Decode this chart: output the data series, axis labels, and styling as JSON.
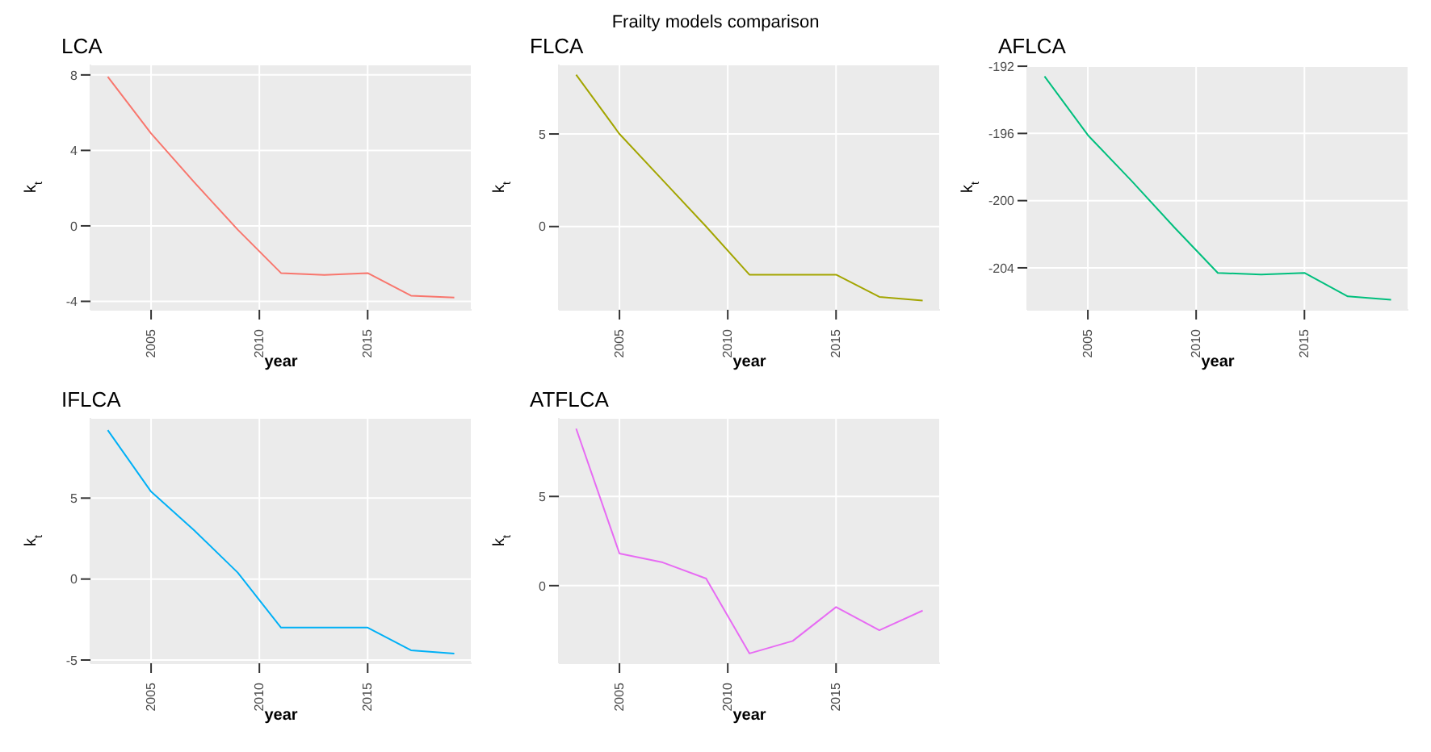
{
  "chart_data": [
    {
      "type": "other",
      "title": "Frailty models comparison"
    },
    {
      "type": "line",
      "title": "LCA",
      "xlabel": "year",
      "ylabel": "k$_{t}$",
      "color": "#f8766d",
      "x": [
        2003,
        2005,
        2007,
        2009,
        2011,
        2013,
        2015,
        2017,
        2019
      ],
      "values": [
        7.9,
        4.9,
        2.3,
        -0.2,
        -2.5,
        -2.6,
        -2.5,
        -3.7,
        -3.8
      ],
      "xlim": [
        2002.2,
        2019.8
      ],
      "xticks": [
        2005,
        2010,
        2015
      ],
      "ylim": [
        -4.45,
        8.55
      ],
      "yticks": [
        -4,
        0,
        4,
        8
      ],
      "grid": true
    },
    {
      "type": "line",
      "title": "FLCA",
      "xlabel": "year",
      "ylabel": "k$_{t}$",
      "color": "#a3a500",
      "x": [
        2003,
        2005,
        2007,
        2009,
        2011,
        2013,
        2015,
        2017,
        2019
      ],
      "values": [
        8.2,
        5.0,
        2.5,
        0,
        -2.6,
        -2.6,
        -2.6,
        -3.8,
        -4.0
      ],
      "xlim": [
        2002.2,
        2019.8
      ],
      "xticks": [
        2005,
        2010,
        2015
      ],
      "ylim": [
        -4.5,
        8.75
      ],
      "yticks": [
        0,
        5
      ],
      "grid": true
    },
    {
      "type": "line",
      "title": "AFLCA",
      "xlabel": "year",
      "ylabel": "k$_{t}$",
      "color": "#00bf7d",
      "x": [
        2003,
        2005,
        2007,
        2009,
        2011,
        2013,
        2015,
        2017,
        2019
      ],
      "values": [
        -192.6,
        -196.1,
        -198.8,
        -201.6,
        -204.3,
        -204.4,
        -204.3,
        -205.7,
        -205.9
      ],
      "xlim": [
        2002.2,
        2019.8
      ],
      "xticks": [
        2005,
        2010,
        2015
      ],
      "ylim": [
        -206.5,
        -191.9
      ],
      "yticks": [
        -204,
        -200,
        -196,
        -192
      ],
      "grid": true
    },
    {
      "type": "line",
      "title": "IFLCA",
      "xlabel": "year",
      "ylabel": "k$_{t}$",
      "color": "#00b0f6",
      "x": [
        2003,
        2005,
        2007,
        2009,
        2011,
        2013,
        2015,
        2017,
        2019
      ],
      "values": [
        9.2,
        5.4,
        3.0,
        0.4,
        -3.0,
        -3.0,
        -3.0,
        -4.4,
        -4.6
      ],
      "xlim": [
        2002.2,
        2019.8
      ],
      "xticks": [
        2005,
        2010,
        2015
      ],
      "ylim": [
        -5.2,
        9.95
      ],
      "yticks": [
        -5,
        0,
        5
      ],
      "grid": true
    },
    {
      "type": "line",
      "title": "ATFLCA",
      "xlabel": "year",
      "ylabel": "k$_{t}$",
      "color": "#e76bf3",
      "x": [
        2003,
        2005,
        2007,
        2009,
        2011,
        2013,
        2015,
        2017,
        2019
      ],
      "values": [
        8.8,
        1.8,
        1.3,
        0.4,
        -3.8,
        -3.1,
        -1.2,
        -2.5,
        -1.4
      ],
      "xlim": [
        2002.2,
        2019.8
      ],
      "xticks": [
        2005,
        2010,
        2015
      ],
      "ylim": [
        -4.35,
        9.4
      ],
      "yticks": [
        0,
        5
      ],
      "grid": true
    }
  ]
}
